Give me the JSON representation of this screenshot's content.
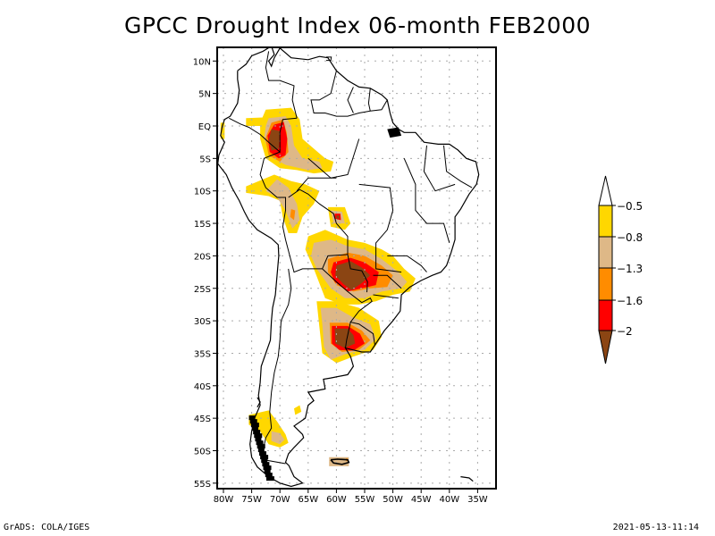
{
  "title": "GPCC Drought Index 06-month FEB2000",
  "footer": {
    "left": "GrADS: COLA/IGES",
    "right": "2021-05-13-11:14"
  },
  "chart_data": {
    "type": "heatmap",
    "title": "GPCC Drought Index 06-month FEB2000",
    "map_region": "South America",
    "lon_range": [
      -81,
      -30
    ],
    "lat_range": [
      -56,
      12
    ],
    "grid": true,
    "lat_ticks": [
      "10N",
      "5N",
      "EQ",
      "5S",
      "10S",
      "15S",
      "20S",
      "25S",
      "30S",
      "35S",
      "40S",
      "45S",
      "50S",
      "55S"
    ],
    "lat_values": [
      10,
      5,
      0,
      -5,
      -10,
      -15,
      -20,
      -25,
      -30,
      -35,
      -40,
      -45,
      -50,
      -55
    ],
    "lon_ticks": [
      "80W",
      "75W",
      "70W",
      "65W",
      "60W",
      "55W",
      "50W",
      "45W",
      "40W",
      "35W"
    ],
    "lon_values": [
      -80,
      -75,
      -70,
      -65,
      -60,
      -55,
      -50,
      -45,
      -40,
      -35
    ],
    "colorbar": {
      "placement": "right",
      "labels": [
        "-0.5",
        "-0.8",
        "-1.3",
        "-1.6",
        "-2"
      ],
      "levels": [
        {
          "range": "> -0.5",
          "color": "#ffffff"
        },
        {
          "range": "-0.8 to -0.5",
          "color": "#ffd700"
        },
        {
          "range": "-1.3 to -0.8",
          "color": "#deb887"
        },
        {
          "range": "-1.6 to -1.3",
          "color": "#ff8c00"
        },
        {
          "range": "-2 to -1.6",
          "color": "#ff0000"
        },
        {
          "range": "< -2",
          "color": "#8b4513"
        }
      ]
    },
    "regions": [
      {
        "name": "western-amazon",
        "lon": [
          -72,
          -65
        ],
        "lat": [
          2,
          -7
        ],
        "peak_level": "< -2"
      },
      {
        "name": "peru-bolivia",
        "lon": [
          -76,
          -63
        ],
        "lat": [
          -8,
          -17
        ],
        "peak_level": "-1.6 to -1.3"
      },
      {
        "name": "central-brazil-small",
        "lon": [
          -61,
          -58
        ],
        "lat": [
          -13,
          -16
        ],
        "peak_level": "< -2"
      },
      {
        "name": "paraguay-south-brazil",
        "lon": [
          -64,
          -46
        ],
        "lat": [
          -17,
          -28
        ],
        "peak_level": "< -2"
      },
      {
        "name": "uruguay-ne-argentina",
        "lon": [
          -62,
          -52
        ],
        "lat": [
          -28,
          -36
        ],
        "peak_level": "< -2"
      },
      {
        "name": "southern-chile-patagonia",
        "lon": [
          -75,
          -68
        ],
        "lat": [
          -44,
          -50
        ],
        "peak_level": "-1.3 to -0.8"
      },
      {
        "name": "falklands",
        "lon": [
          -61.5,
          -57.5
        ],
        "lat": [
          -51,
          -52.5
        ],
        "peak_level": "-1.6 to -1.3"
      }
    ]
  }
}
